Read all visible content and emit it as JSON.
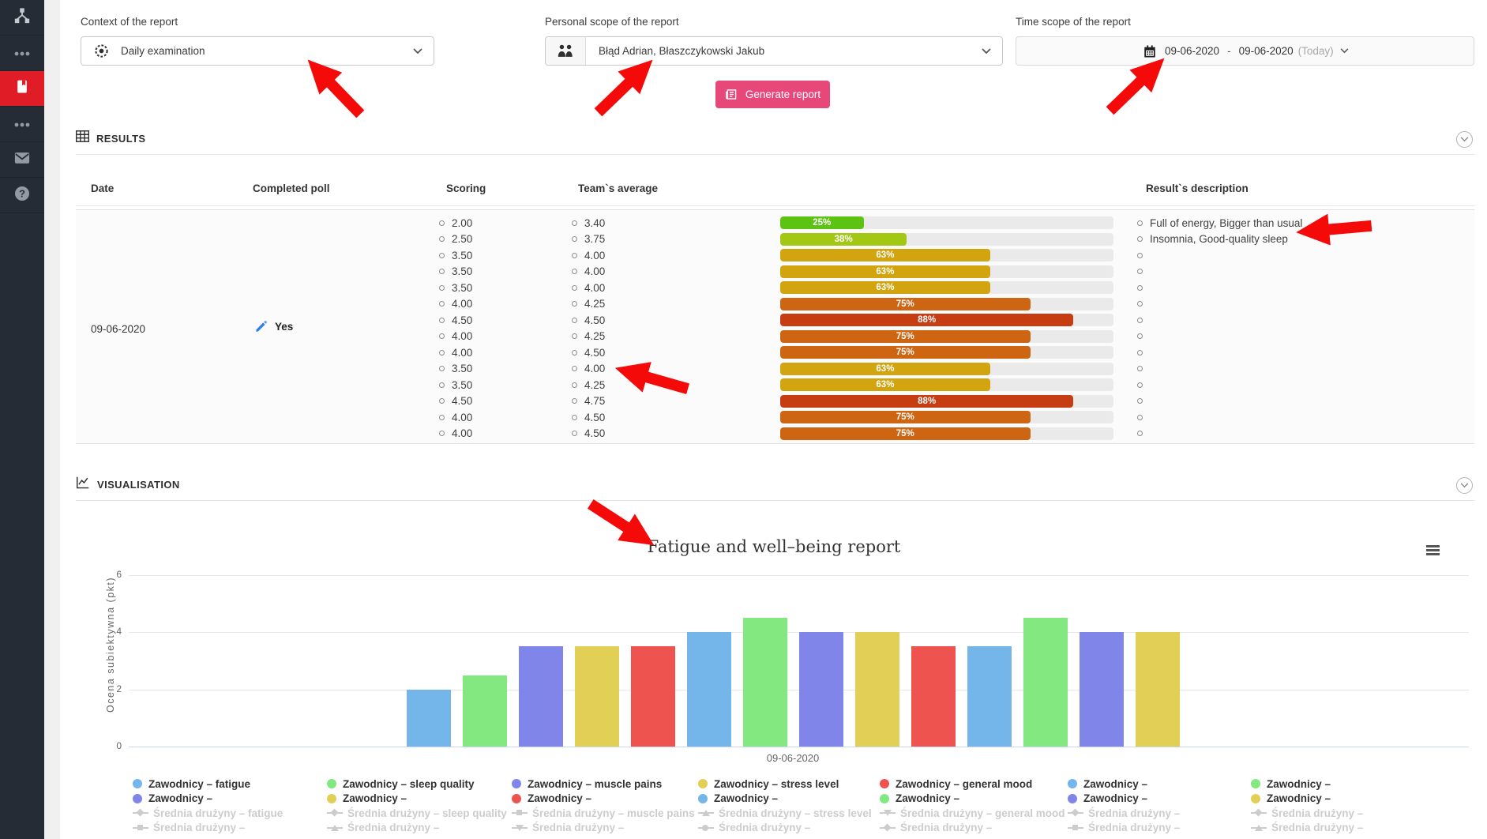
{
  "app": {
    "sidebar_active_color": "#e01d26",
    "accent_pink": "#e84879",
    "annotation_arrow_color": "#f50a0a"
  },
  "sidebar": {
    "items": [
      {
        "icon": "org-chart-icon",
        "active": false
      },
      {
        "icon": "ellipsis-icon",
        "active": false
      },
      {
        "icon": "reports-book-icon",
        "active": true
      },
      {
        "icon": "ellipsis-icon",
        "active": false
      },
      {
        "icon": "mail-icon",
        "active": false
      },
      {
        "icon": "help-icon",
        "active": false
      }
    ]
  },
  "filters": {
    "context": {
      "label": "Context of the report",
      "value": "Daily examination",
      "icon": "scope-target-icon"
    },
    "personal": {
      "label": "Personal scope of the report",
      "value": "Błąd Adrian, Błaszczykowski Jakub",
      "icon": "people-icon"
    },
    "time": {
      "label": "Time scope of the report",
      "from": "09-06-2020",
      "separator": "-",
      "to": "09-06-2020",
      "suffix": "(Today)",
      "icon": "calendar-icon"
    },
    "generate_button": "Generate report"
  },
  "results": {
    "title": "RESULTS",
    "columns": {
      "date": "Date",
      "completed": "Completed poll",
      "scoring": "Scoring",
      "team": "Team`s average",
      "description": "Result`s description"
    },
    "date": "09-06-2020",
    "completed": "Yes",
    "rows": [
      {
        "scoring": "2.00",
        "team": "3.40",
        "pct": 25,
        "pct_label": "25%",
        "bar_color": "#5dc313",
        "desc": "Full of energy, Bigger than usual"
      },
      {
        "scoring": "2.50",
        "team": "3.75",
        "pct": 38,
        "pct_label": "38%",
        "bar_color": "#a3c813",
        "desc": "Insomnia, Good-quality sleep"
      },
      {
        "scoring": "3.50",
        "team": "4.00",
        "pct": 63,
        "pct_label": "63%",
        "bar_color": "#d2a40f",
        "desc": ""
      },
      {
        "scoring": "3.50",
        "team": "4.00",
        "pct": 63,
        "pct_label": "63%",
        "bar_color": "#d2a40f",
        "desc": ""
      },
      {
        "scoring": "3.50",
        "team": "4.00",
        "pct": 63,
        "pct_label": "63%",
        "bar_color": "#d2a40f",
        "desc": ""
      },
      {
        "scoring": "4.00",
        "team": "4.25",
        "pct": 75,
        "pct_label": "75%",
        "bar_color": "#cd6512",
        "desc": ""
      },
      {
        "scoring": "4.50",
        "team": "4.50",
        "pct": 88,
        "pct_label": "88%",
        "bar_color": "#c63d12",
        "desc": ""
      },
      {
        "scoring": "4.00",
        "team": "4.25",
        "pct": 75,
        "pct_label": "75%",
        "bar_color": "#cd6512",
        "desc": ""
      },
      {
        "scoring": "4.00",
        "team": "4.50",
        "pct": 75,
        "pct_label": "75%",
        "bar_color": "#cd6512",
        "desc": ""
      },
      {
        "scoring": "3.50",
        "team": "4.00",
        "pct": 63,
        "pct_label": "63%",
        "bar_color": "#d2a40f",
        "desc": ""
      },
      {
        "scoring": "3.50",
        "team": "4.25",
        "pct": 63,
        "pct_label": "63%",
        "bar_color": "#d2a40f",
        "desc": ""
      },
      {
        "scoring": "4.50",
        "team": "4.75",
        "pct": 88,
        "pct_label": "88%",
        "bar_color": "#c63d12",
        "desc": ""
      },
      {
        "scoring": "4.00",
        "team": "4.50",
        "pct": 75,
        "pct_label": "75%",
        "bar_color": "#cd6512",
        "desc": ""
      },
      {
        "scoring": "4.00",
        "team": "4.50",
        "pct": 75,
        "pct_label": "75%",
        "bar_color": "#cd6512",
        "desc": ""
      }
    ]
  },
  "visualisation": {
    "title": "VISUALISATION"
  },
  "chart_data": {
    "type": "bar",
    "title": "Fatigue and well–being report",
    "xlabel": "",
    "ylabel": "Ocena subiektywna (pkt)",
    "x_tick_label": "09-06-2020",
    "ylim": [
      0,
      6
    ],
    "yticks": [
      6,
      4,
      2,
      0
    ],
    "grid": true,
    "legend_position": "bottom",
    "values": [
      2.0,
      2.5,
      3.5,
      3.5,
      3.5,
      4.0,
      4.5,
      4.0,
      4.0,
      3.5,
      3.5,
      4.5,
      4.0,
      4.0
    ],
    "palette": {
      "blue": "#74b6ea",
      "green": "#82e87f",
      "purple": "#8085e9",
      "yellow": "#e2cf55",
      "red": "#ef5350"
    },
    "bar_color_cycle": [
      "blue",
      "green",
      "purple",
      "yellow",
      "red"
    ],
    "legend_columns": [
      [
        {
          "label": "Zawodnicy – fatigue",
          "color": "blue"
        },
        {
          "label": "Zawodnicy –",
          "color": "purple"
        },
        {
          "label": "Średnia drużyny – fatigue",
          "muted": true,
          "marker": "diamond"
        },
        {
          "label": "Średnia drużyny –",
          "muted": true,
          "marker": "square"
        }
      ],
      [
        {
          "label": "Zawodnicy – sleep quality",
          "color": "green"
        },
        {
          "label": "Zawodnicy –",
          "color": "yellow"
        },
        {
          "label": "Średnia drużyny – sleep quality",
          "muted": true,
          "marker": "diamond"
        },
        {
          "label": "Średnia drużyny –",
          "muted": true,
          "marker": "triangle"
        }
      ],
      [
        {
          "label": "Zawodnicy – muscle pains",
          "color": "purple"
        },
        {
          "label": "Zawodnicy –",
          "color": "red"
        },
        {
          "label": "Średnia drużyny – muscle pains",
          "muted": true,
          "marker": "square"
        },
        {
          "label": "Średnia drużyny –",
          "muted": true,
          "marker": "triangle-down"
        }
      ],
      [
        {
          "label": "Zawodnicy – stress level",
          "color": "yellow"
        },
        {
          "label": "Zawodnicy –",
          "color": "blue"
        },
        {
          "label": "Średnia drużyny – stress level",
          "muted": true,
          "marker": "triangle"
        },
        {
          "label": "Średnia drużyny –",
          "muted": true,
          "marker": "circle"
        }
      ],
      [
        {
          "label": "Zawodnicy – general mood",
          "color": "red"
        },
        {
          "label": "Zawodnicy –",
          "color": "green"
        },
        {
          "label": "Średnia drużyny – general mood",
          "muted": true,
          "marker": "triangle-down"
        },
        {
          "label": "Średnia drużyny –",
          "muted": true,
          "marker": "diamond"
        }
      ],
      [
        {
          "label": "Zawodnicy –",
          "color": "blue"
        },
        {
          "label": "Zawodnicy –",
          "color": "purple"
        },
        {
          "label": "Średnia drużyny –",
          "muted": true,
          "marker": "diamond"
        },
        {
          "label": "Średnia drużyny –",
          "muted": true,
          "marker": "square"
        }
      ],
      [
        {
          "label": "Zawodnicy –",
          "color": "green"
        },
        {
          "label": "Zawodnicy –",
          "color": "yellow"
        },
        {
          "label": "Średnia drużyny –",
          "muted": true,
          "marker": "diamond"
        },
        {
          "label": "Średnia drużyny –",
          "muted": true,
          "marker": "triangle"
        }
      ]
    ]
  }
}
